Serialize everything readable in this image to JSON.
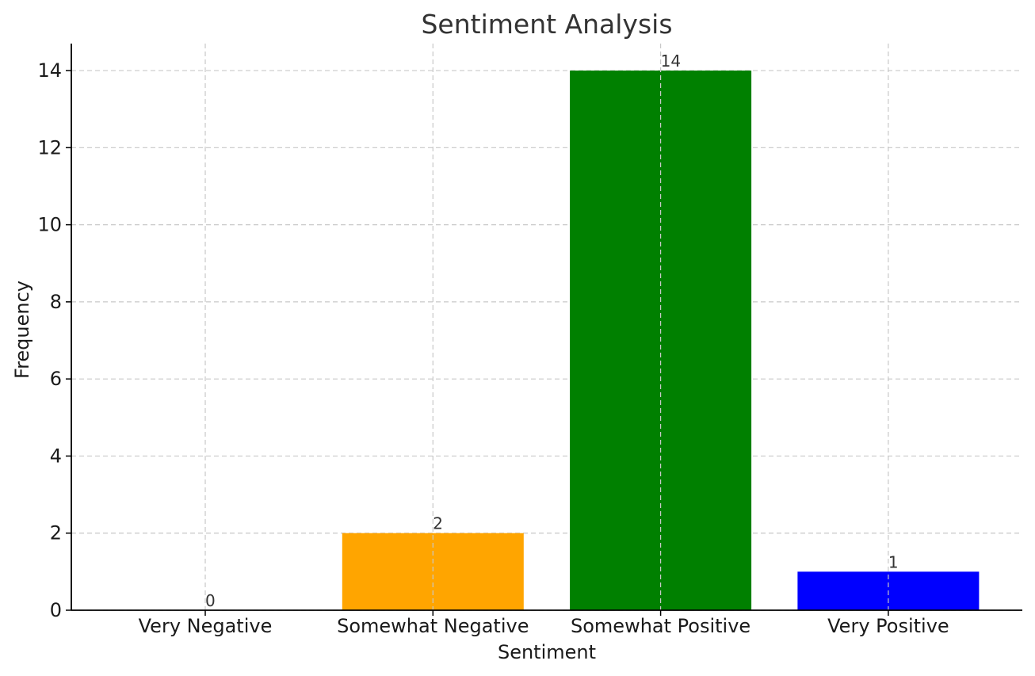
{
  "chart_data": {
    "type": "bar",
    "title": "Sentiment Analysis",
    "xlabel": "Sentiment",
    "ylabel": "Frequency",
    "categories": [
      "Very Negative",
      "Somewhat Negative",
      "Somewhat Positive",
      "Very Positive"
    ],
    "values": [
      0,
      2,
      14,
      1
    ],
    "data_labels": [
      "0",
      "2",
      "14",
      "1"
    ],
    "colors": [
      "#ff0000",
      "#ffa500",
      "#008000",
      "#0000ff"
    ],
    "ylim": [
      0,
      14.7
    ],
    "yticks": [
      0,
      2,
      4,
      6,
      8,
      10,
      12,
      14
    ],
    "grid": true,
    "legend": "none"
  }
}
